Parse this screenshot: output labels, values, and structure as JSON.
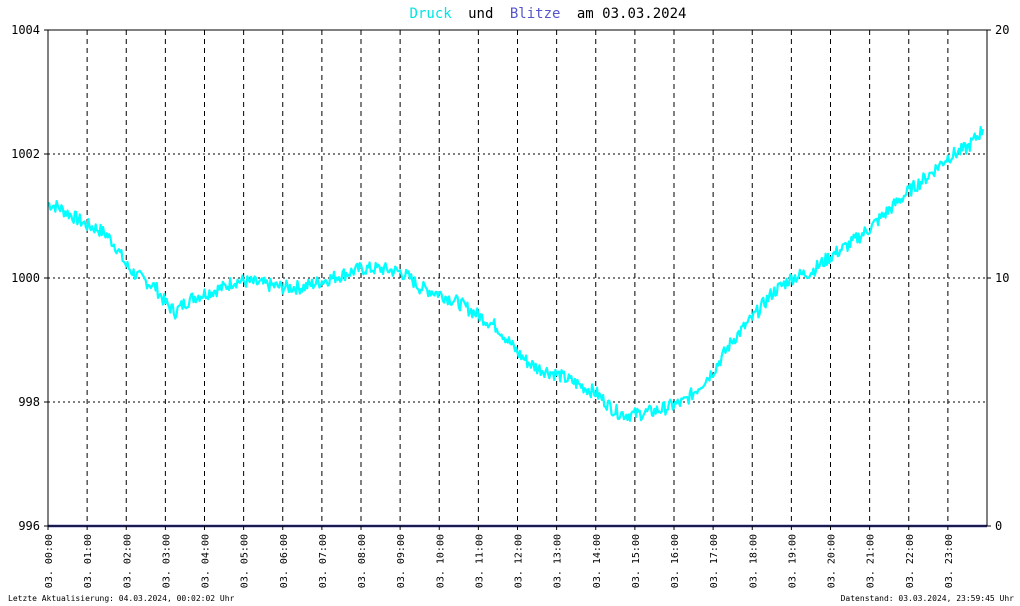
{
  "title": {
    "word1": "Druck",
    "word2": "und",
    "word3": "Blitze",
    "word4": "am 03.03.2024",
    "colors": {
      "druck": "#00e5e5",
      "blitze": "#5555cc",
      "plain": "#000000"
    }
  },
  "footer": {
    "left": "Letzte Aktualisierung: 04.03.2024, 00:02:02 Uhr",
    "right": "Datenstand: 03.03.2024, 23:59:45 Uhr"
  },
  "chart_data": {
    "type": "line",
    "y_left": {
      "min": 996,
      "max": 1004,
      "ticks": [
        "1004",
        "1002",
        "1000",
        "998",
        "996"
      ]
    },
    "y_right": {
      "min": 0,
      "max": 20,
      "ticks": [
        "20",
        "10",
        "0"
      ]
    },
    "x_range_hours": [
      0,
      24
    ],
    "x_ticks": [
      "03. 00:00",
      "03. 01:00",
      "03. 02:00",
      "03. 03:00",
      "03. 04:00",
      "03. 05:00",
      "03. 06:00",
      "03. 07:00",
      "03. 08:00",
      "03. 09:00",
      "03. 10:00",
      "03. 11:00",
      "03. 12:00",
      "03. 13:00",
      "03. 14:00",
      "03. 15:00",
      "03. 16:00",
      "03. 17:00",
      "03. 18:00",
      "03. 19:00",
      "03. 20:00",
      "03. 21:00",
      "03. 22:00",
      "03. 23:00"
    ],
    "grid": true,
    "series": [
      {
        "color": "#00ffff",
        "x": [
          0,
          0.25,
          0.5,
          0.75,
          1.0,
          1.25,
          1.5,
          1.75,
          2.0,
          2.25,
          2.5,
          2.75,
          3.0,
          3.25,
          3.5,
          3.75,
          4.0,
          4.25,
          4.5,
          4.75,
          5.0,
          5.5,
          6.0,
          6.5,
          7.0,
          7.5,
          8.0,
          8.5,
          9.0,
          9.25,
          9.5,
          10.0,
          10.5,
          11.0,
          11.5,
          12.0,
          12.25,
          12.5,
          13.0,
          13.5,
          14.0,
          14.25,
          14.5,
          14.75,
          15.0,
          15.5,
          16.0,
          16.25,
          16.5,
          17.0,
          17.5,
          18.0,
          18.5,
          19.0,
          19.5,
          20.0,
          20.5,
          21.0,
          21.5,
          22.0,
          22.5,
          23.0,
          23.5,
          23.9
        ],
        "values": [
          1001.2,
          1001.15,
          1001.05,
          1000.95,
          1000.85,
          1000.8,
          1000.7,
          1000.5,
          1000.2,
          1000.05,
          999.95,
          999.85,
          999.6,
          999.45,
          999.6,
          999.7,
          999.75,
          999.8,
          999.85,
          999.95,
          999.95,
          999.9,
          999.85,
          999.85,
          999.95,
          1000.05,
          1000.15,
          1000.15,
          1000.1,
          1000.0,
          999.85,
          999.75,
          999.6,
          999.4,
          999.2,
          998.8,
          998.65,
          998.55,
          998.45,
          998.3,
          998.15,
          998.0,
          997.85,
          997.8,
          997.8,
          997.85,
          997.95,
          998.0,
          998.15,
          998.5,
          999.0,
          999.35,
          999.75,
          1000.0,
          1000.1,
          1000.35,
          1000.55,
          1000.8,
          1001.1,
          1001.4,
          1001.65,
          1001.95,
          1002.1,
          1002.4
        ]
      },
      {
        "color": "#333399",
        "x": [
          0,
          24
        ],
        "values": [
          0,
          0
        ]
      }
    ]
  }
}
